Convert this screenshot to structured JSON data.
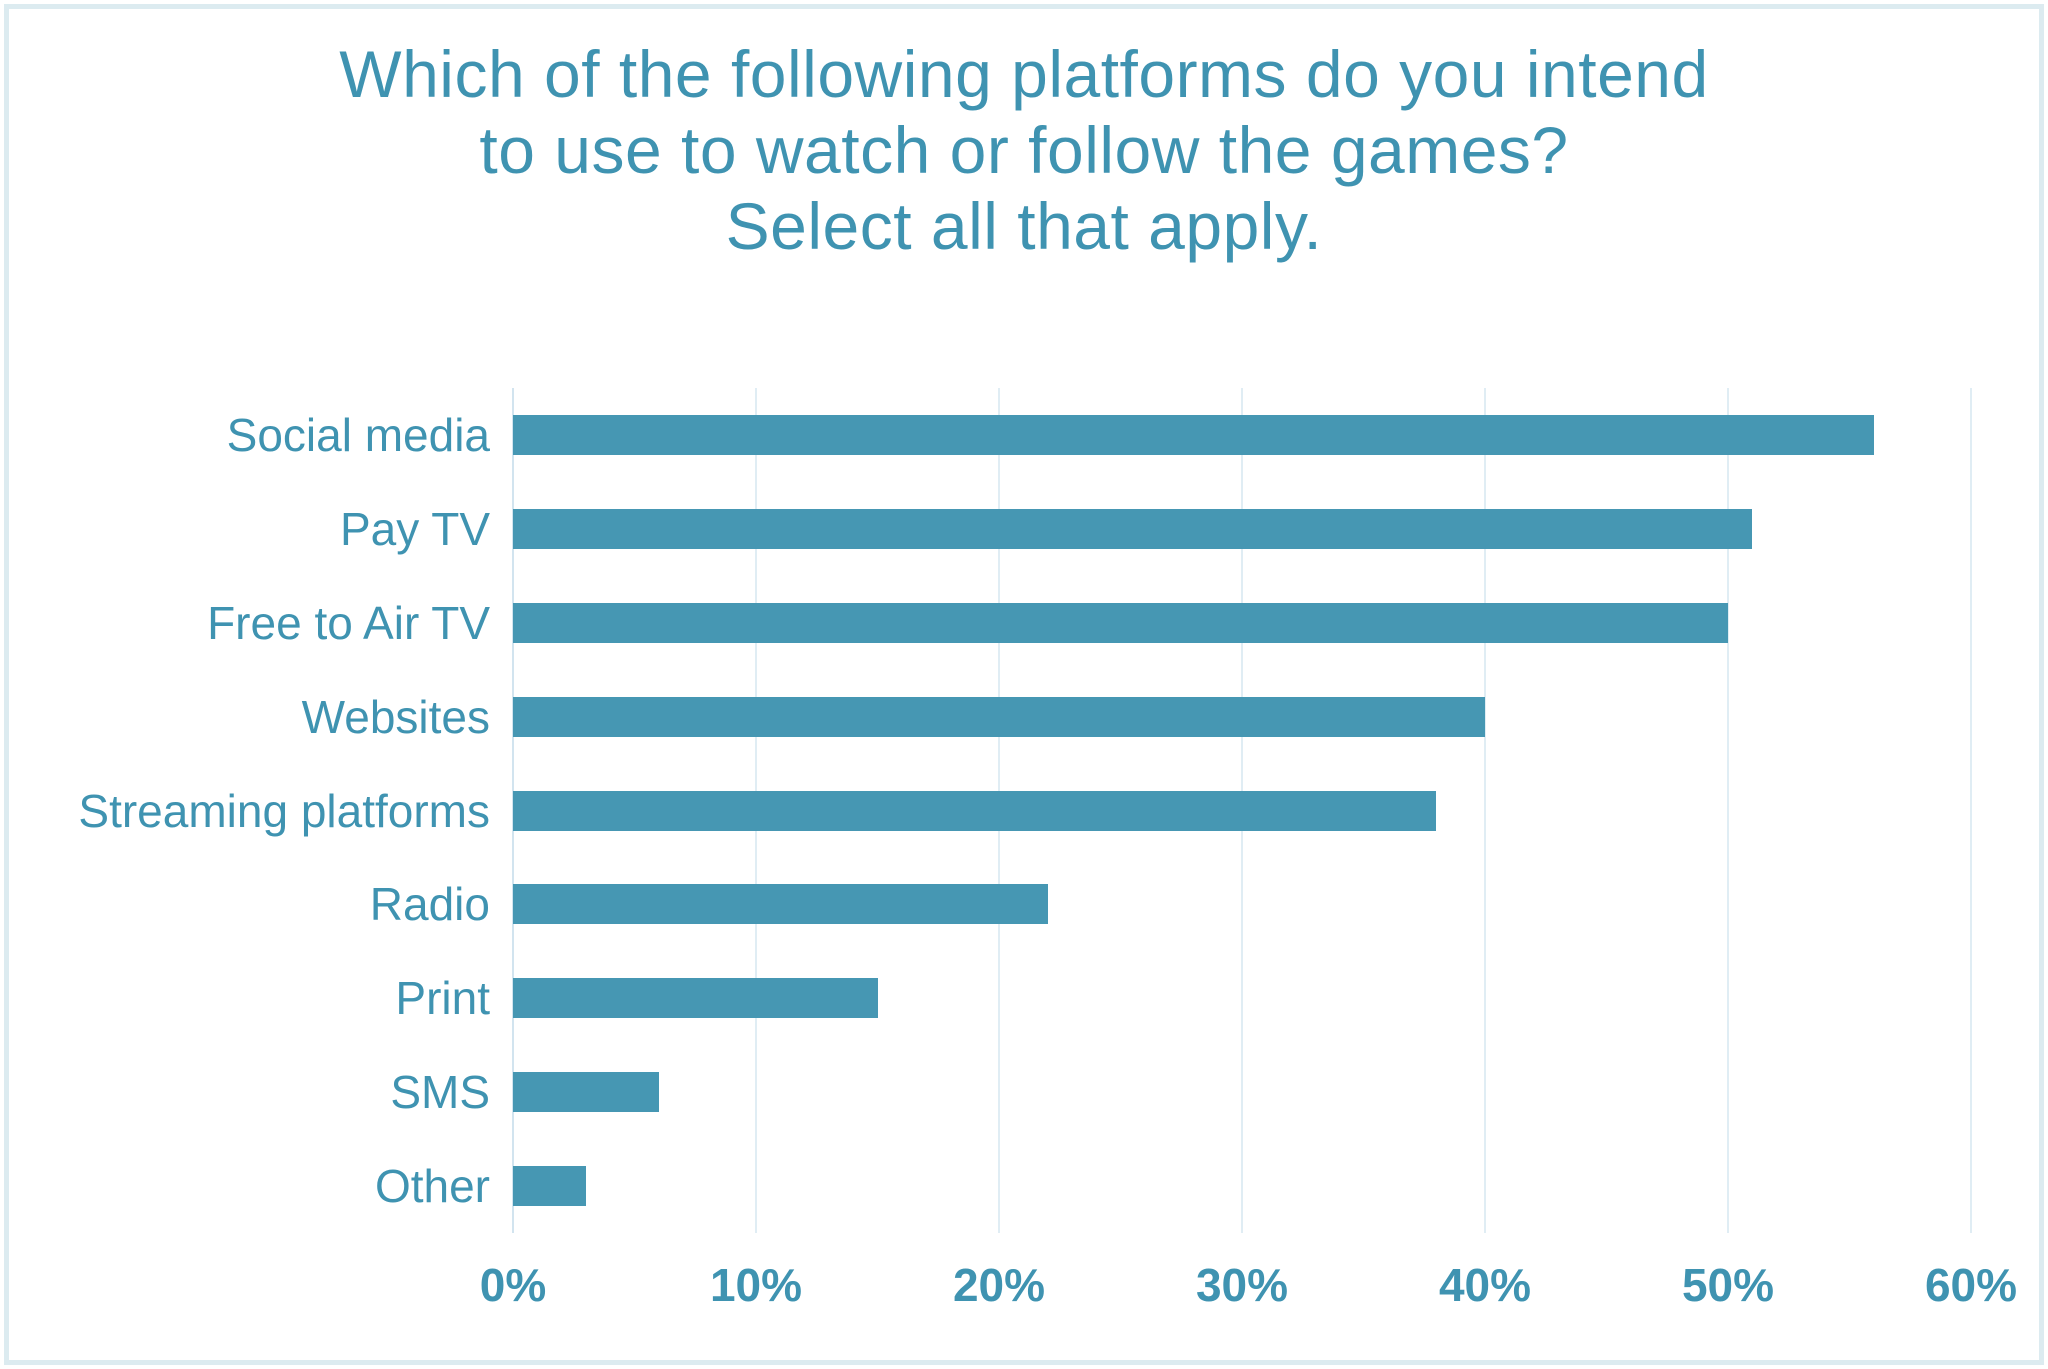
{
  "title": {
    "line1": "Which of the following platforms do you intend",
    "line2": "to use to watch or follow the games?",
    "line3": "Select all that apply."
  },
  "colors": {
    "background": "#FFFFFF",
    "accent_text": "#3F93B1",
    "bar": "#4697B3",
    "gridline": "#E0EDF4",
    "axis_line": "#D2E4EF",
    "frame_border": "#DCEBF0"
  },
  "chart_data": {
    "type": "bar",
    "orientation": "horizontal",
    "title": "Which of the following platforms do you intend to use to watch or follow the games? Select all that apply.",
    "categories": [
      "Social media",
      "Pay TV",
      "Free to Air TV",
      "Websites",
      "Streaming platforms",
      "Radio",
      "Print",
      "SMS",
      "Other"
    ],
    "values": [
      56,
      51,
      50,
      40,
      38,
      22,
      15,
      6,
      3
    ],
    "unit": "%",
    "xlabel": "",
    "ylabel": "",
    "xlim": [
      0,
      60
    ],
    "x_ticks": [
      "0%",
      "10%",
      "20%",
      "30%",
      "40%",
      "50%",
      "60%"
    ],
    "grid": "vertical-gridlines-on",
    "legend": "none"
  }
}
